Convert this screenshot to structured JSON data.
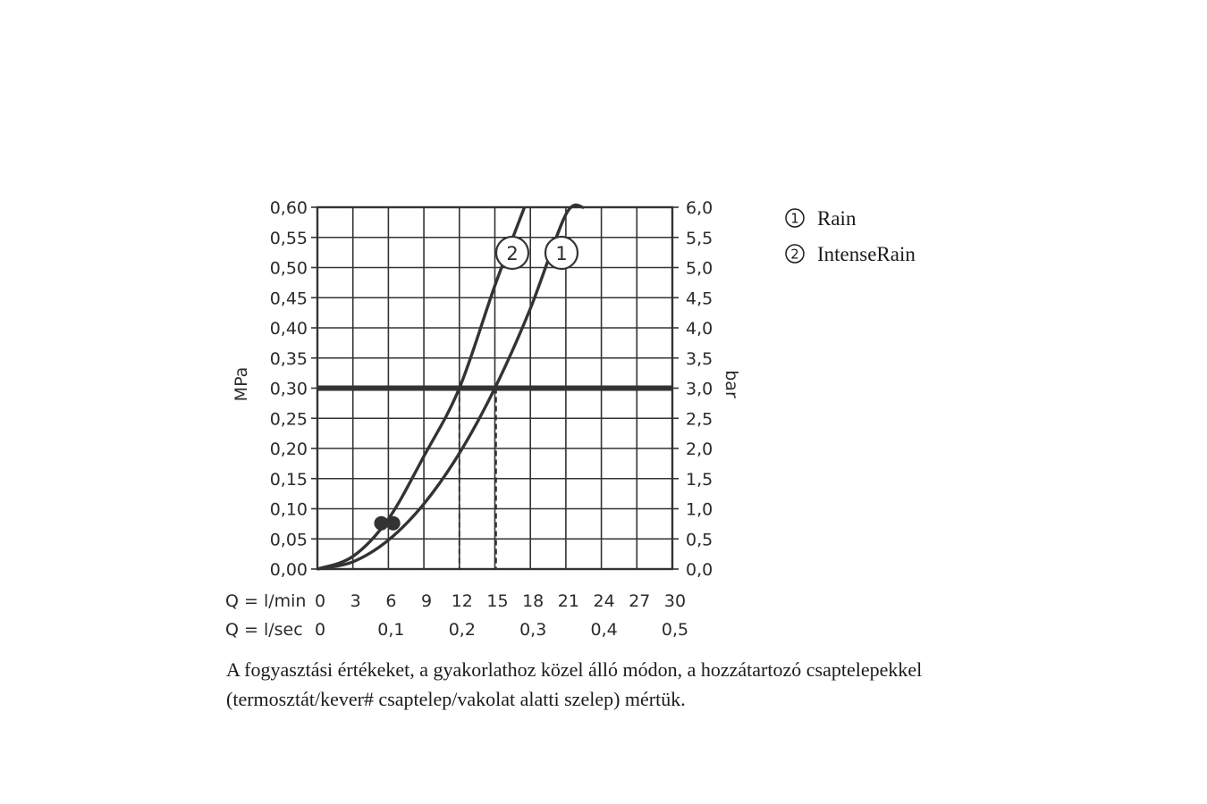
{
  "chart_data": {
    "type": "line",
    "xlabel_rows": [
      {
        "label": "Q = l/min",
        "ticks": [
          {
            "value": 0,
            "label": "0"
          },
          {
            "value": 3,
            "label": "3"
          },
          {
            "value": 6,
            "label": "6"
          },
          {
            "value": 9,
            "label": "9"
          },
          {
            "value": 12,
            "label": "12"
          },
          {
            "value": 15,
            "label": "15"
          },
          {
            "value": 18,
            "label": "18"
          },
          {
            "value": 21,
            "label": "21"
          },
          {
            "value": 24,
            "label": "24"
          },
          {
            "value": 27,
            "label": "27"
          },
          {
            "value": 30,
            "label": "30"
          }
        ]
      },
      {
        "label": "Q = l/sec",
        "ticks": [
          {
            "value": 0,
            "label": "0"
          },
          {
            "value": 6,
            "label": "0,1"
          },
          {
            "value": 12,
            "label": "0,2"
          },
          {
            "value": 18,
            "label": "0,3"
          },
          {
            "value": 24,
            "label": "0,4"
          },
          {
            "value": 30,
            "label": "0,5"
          }
        ]
      }
    ],
    "ylabel_left": "MPa",
    "ylabel_right": "bar",
    "xlim": [
      0,
      30
    ],
    "ylim": [
      0,
      0.6
    ],
    "y_ticks_left": [
      "0,00",
      "0,05",
      "0,10",
      "0,15",
      "0,20",
      "0,25",
      "0,30",
      "0,35",
      "0,40",
      "0,45",
      "0,50",
      "0,55",
      "0,60"
    ],
    "y_ticks_right": [
      "0,0",
      "0,5",
      "1,0",
      "1,5",
      "2,0",
      "2,5",
      "3,0",
      "3,5",
      "4,0",
      "4,5",
      "5,0",
      "5,5",
      "6,0"
    ],
    "grid": true,
    "reference_line": {
      "y": 0.3
    },
    "series": [
      {
        "marker": "1",
        "values_x": [
          0,
          3,
          6,
          9,
          12,
          15,
          18,
          21,
          22.5
        ],
        "values_y": [
          0,
          0.012,
          0.048,
          0.108,
          0.192,
          0.3,
          0.432,
          0.588,
          0.6
        ],
        "drop_x": 15.1,
        "dot": {
          "x": 6.4,
          "y": 0.076
        }
      },
      {
        "marker": "2",
        "values_x": [
          0,
          3,
          6,
          9,
          12,
          15,
          17.5
        ],
        "values_y": [
          0,
          0.021,
          0.083,
          0.187,
          0.3,
          0.47,
          0.6
        ],
        "drop_x": 12.0,
        "dot": {
          "x": 5.4,
          "y": 0.076
        }
      }
    ],
    "legend": {
      "placement": "right",
      "entries": [
        {
          "number": "1",
          "label": "Rain"
        },
        {
          "number": "2",
          "label": "IntenseRain"
        }
      ]
    }
  },
  "caption": {
    "line1": "A fogyasztási értékeket, a gyakorlathoz közel álló módon, a hozzátartozó csaptelepekkel",
    "line2": "(termosztát/kever# csaptelep/vakolat alatti szelep) mértük."
  }
}
